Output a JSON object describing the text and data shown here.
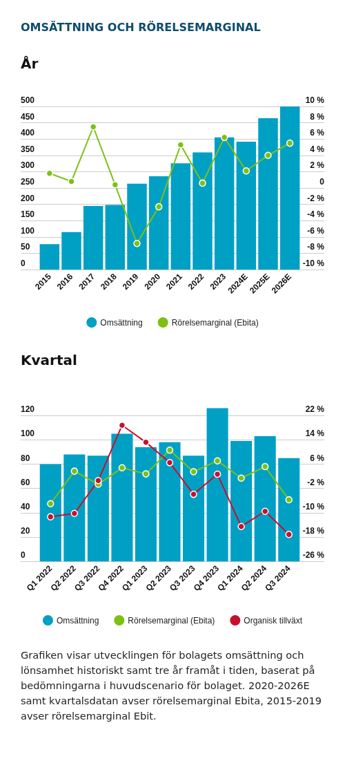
{
  "chart_data": [
    {
      "type": "bar",
      "title": "OMSÄTTNING OCH RÖRELSEMARGINAL",
      "subtitle": "År",
      "categories": [
        "2015",
        "2016",
        "2017",
        "2018",
        "2019",
        "2020",
        "2021",
        "2022",
        "2023",
        "2024E",
        "2025E",
        "2026E"
      ],
      "series": [
        {
          "name": "Omsättning",
          "color": "#00a0c4",
          "values": [
            78,
            115,
            195,
            198,
            263,
            286,
            326,
            359,
            405,
            392,
            464,
            500
          ]
        },
        {
          "name": "Rörelsemarginal (Ebita)",
          "type": "line",
          "axis": "y2",
          "color": "#7dc013",
          "values": [
            1.8,
            0.8,
            7.5,
            0.4,
            -6.8,
            -2.3,
            5.3,
            0.6,
            6.2,
            2.1,
            4.0,
            5.5
          ]
        }
      ],
      "ylim": [
        0,
        500
      ],
      "yticks": [
        0,
        50,
        100,
        150,
        200,
        250,
        300,
        350,
        400,
        450,
        500
      ],
      "y2lim": [
        -10,
        10
      ],
      "y2ticks": [
        {
          "value": -10,
          "label": "-10 %"
        },
        {
          "value": -8,
          "label": "-8 %"
        },
        {
          "value": -6,
          "label": "-6 %"
        },
        {
          "value": -4,
          "label": "-4 %"
        },
        {
          "value": -2,
          "label": "-2 %"
        },
        0,
        {
          "value": 2,
          "label": "2 %"
        },
        {
          "value": 4,
          "label": "4 %"
        },
        {
          "value": 6,
          "label": "6 %"
        },
        {
          "value": 8,
          "label": "8 %"
        },
        {
          "value": 10,
          "label": "10 %"
        }
      ],
      "grid": "y",
      "legend": "bottom",
      "marker": "circle",
      "line_style": "solid"
    },
    {
      "type": "bar",
      "title": "Kvartal",
      "categories": [
        "Q1 2022",
        "Q2 2022",
        "Q3 2022",
        "Q4 2022",
        "Q1 2023",
        "Q2 2023",
        "Q3 2023",
        "Q4 2023",
        "Q1 2024",
        "Q2 2024",
        "Q3 2024"
      ],
      "series": [
        {
          "name": "Omsättning",
          "color": "#00a0c4",
          "values": [
            80,
            88,
            87,
            105,
            94,
            98,
            87,
            126,
            99,
            103,
            85
          ]
        },
        {
          "name": "Rörelsemarginal (Ebita)",
          "type": "line",
          "axis": "y2",
          "color": "#7dc013",
          "values": [
            -7.0,
            3.7,
            -0.6,
            4.8,
            2.8,
            10.6,
            3.5,
            7.1,
            1.4,
            5.2,
            -5.7
          ]
        },
        {
          "name": "Organisk tillväxt",
          "type": "line",
          "axis": "y2",
          "color": "#c8102e",
          "values": [
            -11.3,
            -10.2,
            0.6,
            18.8,
            13.2,
            6.5,
            -3.9,
            2.7,
            -14.5,
            -9.5,
            -17.1
          ]
        }
      ],
      "ylim": [
        0,
        126
      ],
      "yticks": [
        0,
        20,
        40,
        60,
        80,
        100,
        120
      ],
      "y2lim": [
        -26,
        24.4
      ],
      "y2ticks": [
        {
          "value": -26,
          "label": "-26 %"
        },
        {
          "value": -18,
          "label": "-18 %"
        },
        {
          "value": -10,
          "label": "-10 %"
        },
        {
          "value": -2,
          "label": "-2 %"
        },
        {
          "value": 6,
          "label": "6 %"
        },
        {
          "value": 14,
          "label": "14 %"
        },
        {
          "value": 22,
          "label": "22 %"
        }
      ],
      "grid": "y",
      "legend": "bottom",
      "marker": "circle",
      "line_style": "solid",
      "annotations": [
        "Grafiken visar utvecklingen för bolagets omsättning och lönsamhet historiskt samt tre år framåt i tiden, baserat på bedömningarna i huvudscenario för bolaget. 2020-2026E samt kvartalsdatan avser rörelsemarginal Ebita, 2015-2019 avser rörelsemarginal Ebit."
      ]
    }
  ]
}
